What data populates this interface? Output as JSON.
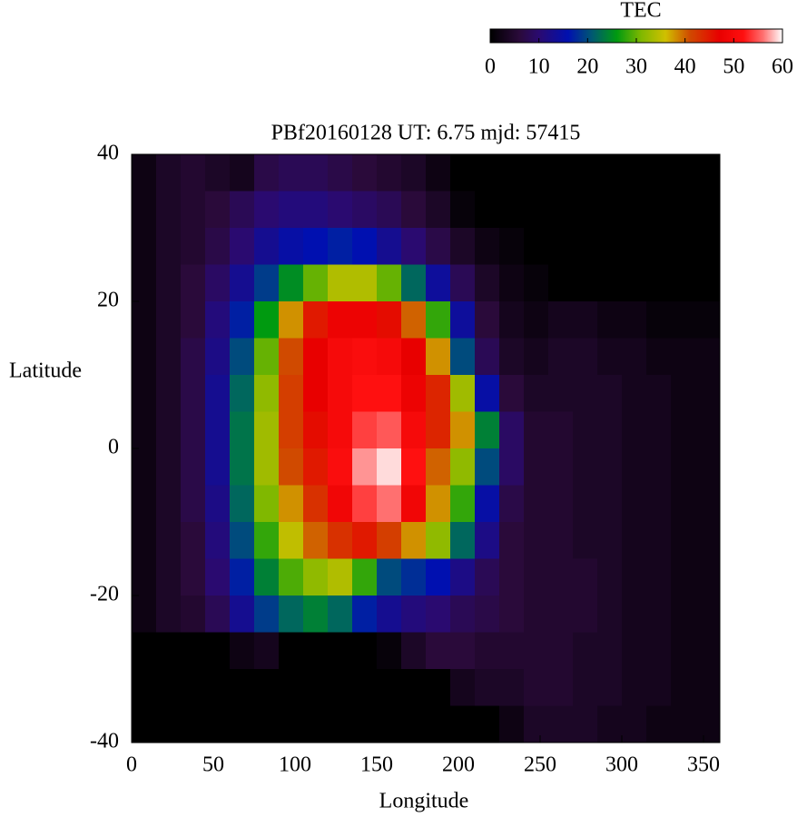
{
  "chart_data": {
    "type": "heatmap",
    "title": "PBf20160128  UT: 6.75  mjd: 57415",
    "x_label": "Longitude",
    "y_label": "Latitude",
    "colorbar_label": "TEC",
    "x": [
      7.5,
      22.5,
      37.5,
      52.5,
      67.5,
      82.5,
      97.5,
      112.5,
      127.5,
      142.5,
      157.5,
      172.5,
      187.5,
      202.5,
      217.5,
      232.5,
      247.5,
      262.5,
      277.5,
      292.5,
      307.5,
      322.5,
      337.5,
      352.5
    ],
    "y": [
      37.5,
      32.5,
      27.5,
      22.5,
      17.5,
      12.5,
      7.5,
      2.5,
      -2.5,
      -7.5,
      -12.5,
      -17.5,
      -22.5,
      -27.5,
      -32.5,
      -37.5
    ],
    "values": [
      [
        2,
        4,
        5,
        4,
        3,
        7,
        8,
        8,
        7,
        6,
        5,
        4,
        2,
        0,
        0,
        0,
        0,
        0,
        0,
        0,
        0,
        0,
        0,
        0
      ],
      [
        2,
        4,
        5,
        6,
        8,
        10,
        11,
        11,
        10,
        9,
        8,
        6,
        4,
        1,
        0,
        0,
        0,
        0,
        0,
        0,
        0,
        0,
        0,
        0
      ],
      [
        2,
        4,
        5,
        7,
        10,
        13,
        15,
        16,
        17,
        16,
        13,
        10,
        7,
        4,
        2,
        1,
        0,
        0,
        0,
        0,
        0,
        0,
        0,
        0
      ],
      [
        2,
        4,
        6,
        9,
        13,
        19,
        25,
        30,
        34,
        34,
        30,
        22,
        14,
        8,
        4,
        2,
        1,
        0,
        0,
        0,
        0,
        0,
        0,
        0
      ],
      [
        2,
        4,
        6,
        11,
        17,
        26,
        38,
        45,
        48,
        48,
        46,
        40,
        28,
        14,
        6,
        3,
        2,
        3,
        3,
        2,
        2,
        1,
        1,
        1
      ],
      [
        2,
        4,
        7,
        12,
        20,
        30,
        41,
        47,
        50,
        51,
        50,
        47,
        38,
        20,
        8,
        4,
        3,
        4,
        4,
        3,
        3,
        2,
        2,
        2
      ],
      [
        2,
        4,
        7,
        13,
        22,
        32,
        42,
        47,
        50,
        52,
        52,
        48,
        44,
        33,
        15,
        6,
        4,
        4,
        4,
        4,
        3,
        3,
        2,
        2
      ],
      [
        2,
        4,
        7,
        13,
        23,
        33,
        42,
        46,
        50,
        54,
        55,
        50,
        44,
        38,
        24,
        9,
        5,
        5,
        4,
        4,
        3,
        3,
        2,
        2
      ],
      [
        2,
        4,
        7,
        13,
        23,
        33,
        41,
        45,
        51,
        57,
        59,
        52,
        40,
        32,
        20,
        9,
        5,
        5,
        4,
        4,
        3,
        3,
        2,
        2
      ],
      [
        2,
        4,
        7,
        12,
        22,
        31,
        38,
        43,
        49,
        54,
        56,
        49,
        38,
        28,
        15,
        7,
        5,
        5,
        4,
        4,
        3,
        3,
        2,
        2
      ],
      [
        2,
        4,
        6,
        11,
        20,
        28,
        35,
        40,
        43,
        45,
        42,
        38,
        32,
        22,
        12,
        6,
        5,
        5,
        4,
        4,
        3,
        3,
        2,
        2
      ],
      [
        2,
        4,
        6,
        10,
        17,
        24,
        29,
        32,
        34,
        28,
        20,
        18,
        16,
        12,
        8,
        6,
        5,
        5,
        5,
        4,
        3,
        3,
        2,
        2
      ],
      [
        2,
        4,
        5,
        8,
        13,
        19,
        22,
        24,
        22,
        17,
        13,
        11,
        10,
        8,
        7,
        6,
        5,
        5,
        5,
        4,
        3,
        3,
        2,
        2
      ],
      [
        0,
        0,
        0,
        0,
        2,
        3,
        0,
        0,
        0,
        0,
        1,
        4,
        6,
        6,
        5,
        5,
        5,
        5,
        4,
        4,
        3,
        3,
        2,
        2
      ],
      [
        0,
        0,
        0,
        0,
        0,
        0,
        0,
        0,
        0,
        0,
        0,
        0,
        0,
        3,
        4,
        4,
        5,
        5,
        4,
        4,
        3,
        3,
        2,
        2
      ],
      [
        0,
        0,
        0,
        0,
        0,
        0,
        0,
        0,
        0,
        0,
        0,
        0,
        0,
        0,
        0,
        2,
        4,
        4,
        4,
        3,
        3,
        2,
        2,
        2
      ]
    ],
    "xlim": [
      0,
      360
    ],
    "ylim": [
      -40,
      40
    ],
    "xticks": [
      0,
      50,
      100,
      150,
      200,
      250,
      300,
      350
    ],
    "yticks": [
      -40,
      -20,
      0,
      20,
      40
    ],
    "zlim": [
      0,
      60
    ],
    "zticks": [
      0,
      10,
      20,
      30,
      40,
      50,
      60
    ],
    "colormap": [
      {
        "value": 0,
        "color": "#000000"
      },
      {
        "value": 6,
        "color": "#2a0a3a"
      },
      {
        "value": 10,
        "color": "#2a0a70"
      },
      {
        "value": 16,
        "color": "#0010b0"
      },
      {
        "value": 21,
        "color": "#005a70"
      },
      {
        "value": 26,
        "color": "#009a10"
      },
      {
        "value": 31,
        "color": "#80b800"
      },
      {
        "value": 36,
        "color": "#d0c000"
      },
      {
        "value": 41,
        "color": "#d04a00"
      },
      {
        "value": 47,
        "color": "#e80000"
      },
      {
        "value": 52,
        "color": "#ff1010"
      },
      {
        "value": 56,
        "color": "#ff7070"
      },
      {
        "value": 60,
        "color": "#ffffff"
      }
    ]
  }
}
